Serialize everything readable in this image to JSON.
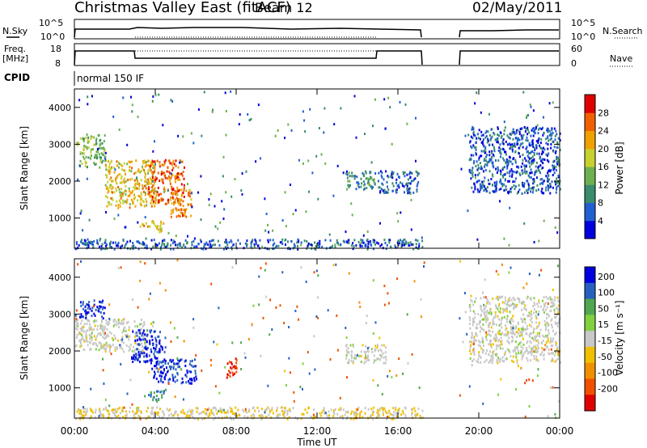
{
  "header": {
    "station": "Christmas Valley East (fitACF)",
    "beam": "Beam 12",
    "date": "02/May/2011"
  },
  "status_panels": {
    "nsky_label": "N.Sky",
    "nsky_ticks": [
      "10^5",
      "10^0"
    ],
    "nsearch_label": "N.Search",
    "nsearch_ticks": [
      "10^5",
      "10^0"
    ],
    "freq_label": "Freq.",
    "freq_unit": "[MHz]",
    "freq_ticks": [
      18,
      8
    ],
    "nave_label": "Nave",
    "nave_ticks": [
      60,
      0
    ],
    "cpid_label": "CPID",
    "cpid_text": "normal 150 IF"
  },
  "colors": {
    "power_scale": [
      "#0000dd",
      "#2060d0",
      "#3a8c6c",
      "#6cb050",
      "#c8d030",
      "#f0a000",
      "#f06000",
      "#e00000"
    ],
    "velocity_scale": [
      "#0000e0",
      "#2860c0",
      "#50a850",
      "#80d040",
      "#c8c8c8",
      "#f0c000",
      "#f09000",
      "#f05000",
      "#e00000"
    ]
  },
  "chart_data": [
    {
      "type": "heatmap",
      "panel": "power",
      "ylabel": "Slant Range [km]",
      "ylim": [
        180,
        4500
      ],
      "yticks": [
        1000,
        2000,
        3000,
        4000
      ],
      "colorbar_label": "Power [dB]",
      "colorbar_ticks": [
        4,
        8,
        12,
        16,
        20,
        24,
        28
      ],
      "data_gap_hours": [
        17.3,
        19.0
      ],
      "echo_regions": [
        {
          "t_start": 0.1,
          "t_end": 1.5,
          "r_start": 2400,
          "r_end": 3300,
          "power_db": 14
        },
        {
          "t_start": 1.5,
          "t_end": 4.0,
          "r_start": 1300,
          "r_end": 2600,
          "power_db": 20
        },
        {
          "t_start": 3.6,
          "t_end": 5.4,
          "r_start": 1400,
          "r_end": 2600,
          "power_db": 26
        },
        {
          "t_start": 4.7,
          "t_end": 5.8,
          "r_start": 1050,
          "r_end": 1800,
          "power_db": 24
        },
        {
          "t_start": 3.2,
          "t_end": 4.4,
          "r_start": 650,
          "r_end": 950,
          "power_db": 20
        },
        {
          "t_start": 13.4,
          "t_end": 15.0,
          "r_start": 1800,
          "r_end": 2300,
          "power_db": 10
        },
        {
          "t_start": 15.0,
          "t_end": 17.0,
          "r_start": 1700,
          "r_end": 2300,
          "power_db": 6
        },
        {
          "t_start": 19.5,
          "t_end": 24.0,
          "r_start": 1700,
          "r_end": 3500,
          "power_db": 6
        },
        {
          "t_start": 0.0,
          "t_end": 17.2,
          "r_start": 180,
          "r_end": 450,
          "power_db": 6
        }
      ]
    },
    {
      "type": "heatmap",
      "panel": "velocity",
      "xlabel": "Time UT",
      "ylabel": "Slant Range [km]",
      "xlim": [
        "00:00",
        "24:00"
      ],
      "xticks": [
        "00:00",
        "04:00",
        "08:00",
        "12:00",
        "16:00",
        "20:00",
        "00:00"
      ],
      "ylim": [
        180,
        4500
      ],
      "yticks": [
        1000,
        2000,
        3000,
        4000
      ],
      "colorbar_label": "Velocity [m s⁻¹]",
      "colorbar_ticks": [
        200,
        100,
        50,
        15,
        -15,
        -50,
        -100,
        -200
      ],
      "data_gap_hours": [
        17.3,
        19.0
      ],
      "echo_regions": [
        {
          "t_start": 0.2,
          "t_end": 1.5,
          "r_start": 2900,
          "r_end": 3400,
          "velocity": 200
        },
        {
          "t_start": 0.0,
          "t_end": 3.5,
          "r_start": 2000,
          "r_end": 2900,
          "velocity": 0
        },
        {
          "t_start": 2.8,
          "t_end": 4.5,
          "r_start": 1700,
          "r_end": 2600,
          "velocity": 200
        },
        {
          "t_start": 3.8,
          "t_end": 6.0,
          "r_start": 1150,
          "r_end": 1800,
          "velocity": 200
        },
        {
          "t_start": 3.4,
          "t_end": 4.4,
          "r_start": 650,
          "r_end": 950,
          "velocity": 100
        },
        {
          "t_start": 7.5,
          "t_end": 8.0,
          "r_start": 1300,
          "r_end": 1900,
          "velocity": -200
        },
        {
          "t_start": 13.4,
          "t_end": 15.4,
          "r_start": 1700,
          "r_end": 2200,
          "velocity": 0
        },
        {
          "t_start": 0.0,
          "t_end": 17.2,
          "r_start": 180,
          "r_end": 500,
          "velocity": -15
        },
        {
          "t_start": 19.5,
          "t_end": 24.0,
          "r_start": 1700,
          "r_end": 3500,
          "velocity": 0
        }
      ]
    }
  ]
}
